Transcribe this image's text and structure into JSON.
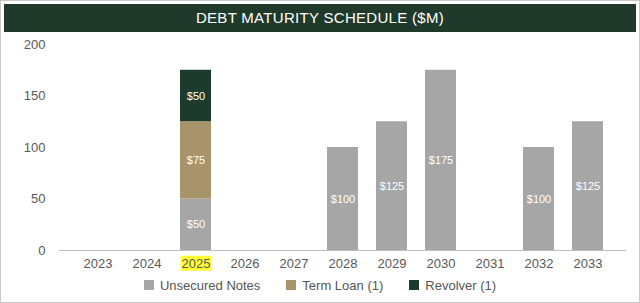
{
  "chart_data": {
    "type": "bar",
    "title": "DEBT MATURITY SCHEDULE ($M)",
    "categories": [
      "2023",
      "2024",
      "2025",
      "2026",
      "2027",
      "2028",
      "2029",
      "2030",
      "2031",
      "2032",
      "2033"
    ],
    "series": [
      {
        "name": "Unsecured Notes",
        "color": "#a6a6a6",
        "values": [
          null,
          null,
          50,
          null,
          null,
          100,
          125,
          175,
          null,
          100,
          125
        ],
        "value_labels": [
          null,
          null,
          "$50",
          null,
          null,
          "$100",
          "$125",
          "$175",
          null,
          "$100",
          "$125"
        ]
      },
      {
        "name": "Term Loan (1)",
        "color": "#a8946a",
        "values": [
          null,
          null,
          75,
          null,
          null,
          null,
          null,
          null,
          null,
          null,
          null
        ],
        "value_labels": [
          null,
          null,
          "$75",
          null,
          null,
          null,
          null,
          null,
          null,
          null,
          null
        ]
      },
      {
        "name": "Revolver (1)",
        "color": "#1d3b2c",
        "values": [
          null,
          null,
          50,
          null,
          null,
          null,
          null,
          null,
          null,
          null,
          null
        ],
        "value_labels": [
          null,
          null,
          "$50",
          null,
          null,
          null,
          null,
          null,
          null,
          null,
          null
        ]
      }
    ],
    "ylim": [
      0,
      200
    ],
    "yticks": [
      0,
      50,
      100,
      150,
      200
    ],
    "grid": false,
    "stacked": true,
    "data_labels": true,
    "legend": "bottom"
  }
}
